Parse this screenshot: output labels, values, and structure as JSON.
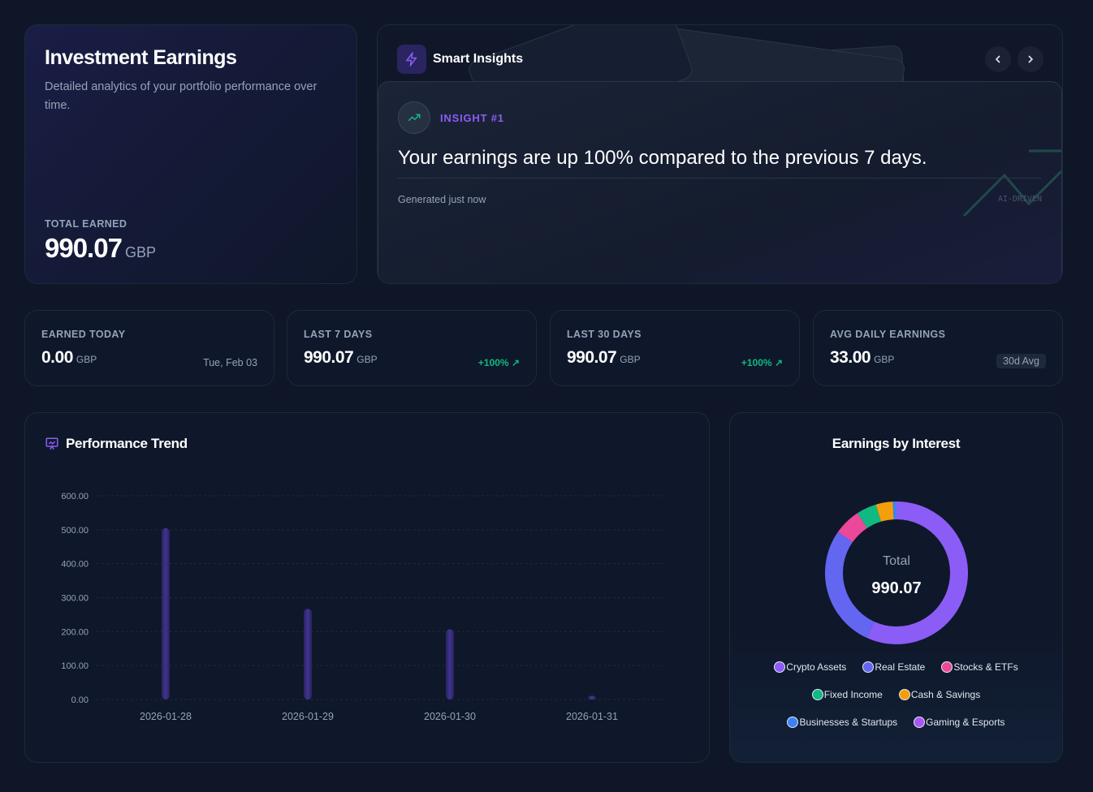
{
  "hero": {
    "title": "Investment Earnings",
    "subtitle": "Detailed analytics of your portfolio performance over time.",
    "total_label": "TOTAL EARNED",
    "total_value": "990.07",
    "currency": "GBP"
  },
  "insights": {
    "title": "Smart Insights",
    "icon": "bolt-icon",
    "prev_icon": "chevron-left-icon",
    "next_icon": "chevron-right-icon",
    "insight_label": "INSIGHT #1",
    "insight_icon": "trending-up-icon",
    "text": "Your earnings are up 100% compared to the previous 7 days.",
    "generated": "Generated just now",
    "tag": "AI-DRIVEN"
  },
  "stats": [
    {
      "label": "EARNED TODAY",
      "value": "0.00",
      "currency": "GBP",
      "right": "Tue, Feb 03"
    },
    {
      "label": "LAST 7 DAYS",
      "value": "990.07",
      "currency": "GBP",
      "right": "+100%"
    },
    {
      "label": "LAST 30 DAYS",
      "value": "990.07",
      "currency": "GBP",
      "right": "+100%"
    },
    {
      "label": "AVG DAILY EARNINGS",
      "value": "33.00",
      "currency": "GBP",
      "right": "30d Avg"
    }
  ],
  "colors": {
    "accent": "#8b5cf6",
    "positive": "#10b981",
    "bar": "#3b2f7a"
  },
  "performance": {
    "title": "Performance Trend"
  },
  "donut": {
    "title": "Earnings by Interest",
    "center_label": "Total",
    "center_value": "990.07"
  },
  "chart_data": [
    {
      "type": "bar",
      "categories": [
        "2026-01-28",
        "2026-01-29",
        "2026-01-30",
        "2026-01-31"
      ],
      "values": [
        505,
        267,
        207,
        11
      ],
      "ylim": [
        0,
        600
      ],
      "yticks": [
        "0.00",
        "100.00",
        "200.00",
        "300.00",
        "400.00",
        "500.00",
        "600.00"
      ],
      "grid": true
    },
    {
      "type": "pie",
      "labels": [
        "Crypto Assets",
        "Real Estate",
        "Stocks & ETFs",
        "Fixed Income",
        "Cash & Savings",
        "Businesses & Startups",
        "Gaming & Esports"
      ],
      "values": [
        563,
        276,
        60,
        45,
        38,
        8,
        0
      ],
      "colors": [
        "#8b5cf6",
        "#6366f1",
        "#ec4899",
        "#10b981",
        "#f59e0b",
        "#3b82f6",
        "#a855f7"
      ],
      "legend": "bottom"
    }
  ]
}
